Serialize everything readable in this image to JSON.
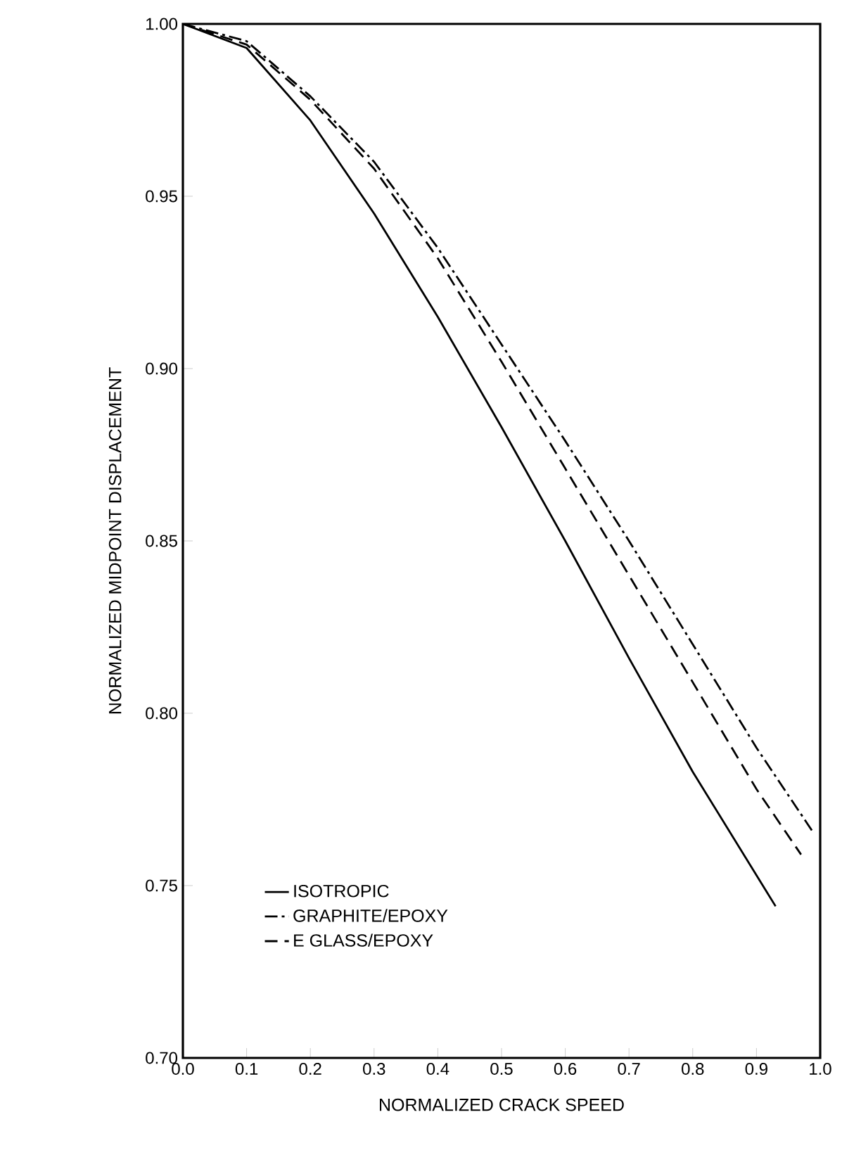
{
  "chart_data": {
    "type": "line",
    "xlabel": "NORMALIZED CRACK SPEED",
    "ylabel": "NORMALIZED MIDPOINT DISPLACEMENT",
    "xlim": [
      0.0,
      1.0
    ],
    "ylim": [
      0.7,
      1.0
    ],
    "xticks": [
      {
        "value": 0.0,
        "label": "0.0"
      },
      {
        "value": 0.1,
        "label": "0.1"
      },
      {
        "value": 0.2,
        "label": "0.2"
      },
      {
        "value": 0.3,
        "label": "0.3"
      },
      {
        "value": 0.4,
        "label": "0.4"
      },
      {
        "value": 0.5,
        "label": "0.5"
      },
      {
        "value": 0.6,
        "label": "0.6"
      },
      {
        "value": 0.7,
        "label": "0.7"
      },
      {
        "value": 0.8,
        "label": "0.8"
      },
      {
        "value": 0.9,
        "label": "0.9"
      },
      {
        "value": 1.0,
        "label": "1.0"
      }
    ],
    "yticks": [
      {
        "value": 0.7,
        "label": "0.70"
      },
      {
        "value": 0.75,
        "label": "0.75"
      },
      {
        "value": 0.8,
        "label": "0.80"
      },
      {
        "value": 0.85,
        "label": "0.85"
      },
      {
        "value": 0.9,
        "label": "0.90"
      },
      {
        "value": 0.95,
        "label": "0.95"
      },
      {
        "value": 1.0,
        "label": "1.00"
      }
    ],
    "legend": "bottom left",
    "grid": false,
    "marker": "none",
    "series": [
      {
        "name": "ISOTROPIC",
        "color": "#000000",
        "line_style": "solid",
        "x": [
          0.0,
          0.1,
          0.2,
          0.3,
          0.4,
          0.5,
          0.6,
          0.7,
          0.8,
          0.93
        ],
        "values": [
          1.0,
          0.993,
          0.972,
          0.945,
          0.915,
          0.883,
          0.85,
          0.816,
          0.783,
          0.744
        ]
      },
      {
        "name": "GRAPHITE/EPOXY",
        "color": "#000000",
        "line_style": "dashdot",
        "x": [
          0.0,
          0.1,
          0.2,
          0.3,
          0.4,
          0.5,
          0.6,
          0.7,
          0.8,
          0.9,
          0.987
        ],
        "values": [
          1.0,
          0.995,
          0.979,
          0.96,
          0.935,
          0.907,
          0.879,
          0.85,
          0.82,
          0.79,
          0.766
        ]
      },
      {
        "name": "E GLASS/EPOXY",
        "color": "#000000",
        "line_style": "dashed",
        "x": [
          0.0,
          0.1,
          0.2,
          0.3,
          0.4,
          0.5,
          0.6,
          0.7,
          0.8,
          0.9,
          0.97
        ],
        "values": [
          1.0,
          0.994,
          0.978,
          0.958,
          0.932,
          0.902,
          0.871,
          0.84,
          0.809,
          0.778,
          0.759
        ]
      }
    ]
  }
}
